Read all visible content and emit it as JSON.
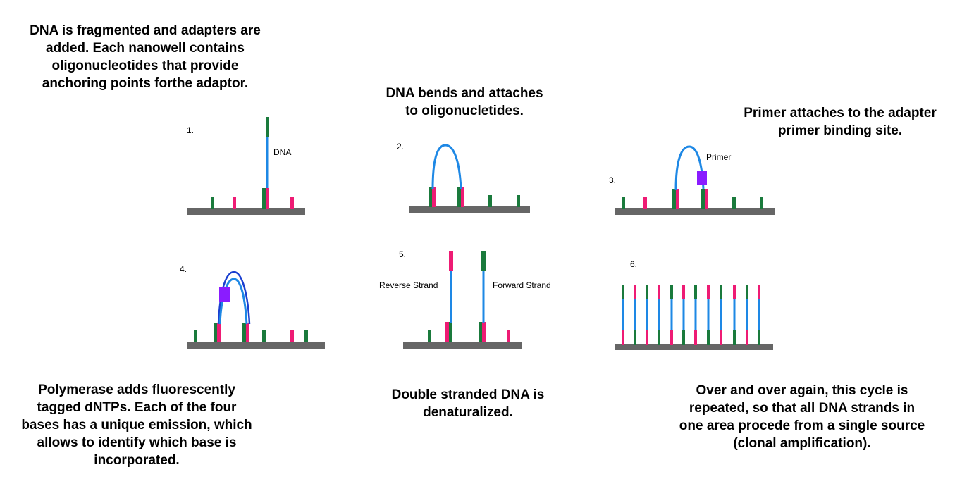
{
  "captions": {
    "step1": "DNA is fragmented and adapters are\nadded. Each nanowell contains\noligonucleotides that provide\nanchoring points forthe adaptor.",
    "step2": "DNA bends and attaches\nto oligonucletides.",
    "step3": "Primer attaches to the adapter\nprimer binding site.",
    "step4": "Polymerase adds fluorescently\ntagged dNTPs. Each of the four\nbases has a unique emission, which\nallows to identify which base is\nincorporated.",
    "step5": "Double stranded DNA is\ndenaturalized.",
    "step6": "Over and over again, this cycle is\nrepeated, so that all DNA strands in\none area procede from a single source\n(clonal amplification)."
  },
  "panel_numbers": {
    "p1": "1.",
    "p2": "2.",
    "p3": "3.",
    "p4": "4.",
    "p5": "5.",
    "p6": "6."
  },
  "labels": {
    "dna": "DNA",
    "primer": "Primer",
    "reverse_strand": "Reverse Strand",
    "forward_strand": "Forward Strand"
  },
  "colors": {
    "surface": "#666666",
    "oligo_green": "#1a7a3c",
    "oligo_pink": "#ee1b74",
    "dna_blue": "#1e88e5",
    "dna_dark_blue": "#1a3fd0",
    "primer_purple": "#8a1cff"
  }
}
